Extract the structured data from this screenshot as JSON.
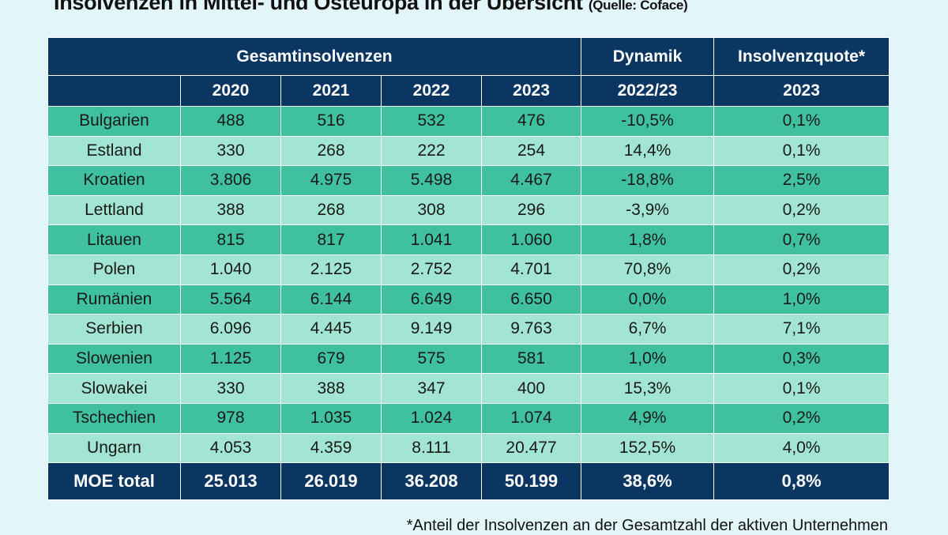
{
  "title": "Insolvenzen in Mittel- und Osteuropa in der Übersicht",
  "source": "(Quelle: Coface)",
  "header": {
    "group1": "Gesamtinsolvenzen",
    "group2": "Dynamik",
    "group3": "Insolvenzquote*",
    "sub": [
      "2020",
      "2021",
      "2022",
      "2023",
      "2022/23",
      "2023"
    ]
  },
  "rows": [
    [
      "Bulgarien",
      "488",
      "516",
      "532",
      "476",
      "-10,5%",
      "0,1%"
    ],
    [
      "Estland",
      "330",
      "268",
      "222",
      "254",
      "14,4%",
      "0,1%"
    ],
    [
      "Kroatien",
      "3.806",
      "4.975",
      "5.498",
      "4.467",
      "-18,8%",
      "2,5%"
    ],
    [
      "Lettland",
      "388",
      "268",
      "308",
      "296",
      "-3,9%",
      "0,2%"
    ],
    [
      "Litauen",
      "815",
      "817",
      "1.041",
      "1.060",
      "1,8%",
      "0,7%"
    ],
    [
      "Polen",
      "1.040",
      "2.125",
      "2.752",
      "4.701",
      "70,8%",
      "0,2%"
    ],
    [
      "Rumänien",
      "5.564",
      "6.144",
      "6.649",
      "6.650",
      "0,0%",
      "1,0%"
    ],
    [
      "Serbien",
      "6.096",
      "4.445",
      "9.149",
      "9.763",
      "6,7%",
      "7,1%"
    ],
    [
      "Slowenien",
      "1.125",
      "679",
      "575",
      "581",
      "1,0%",
      "0,3%"
    ],
    [
      "Slowakei",
      "330",
      "388",
      "347",
      "400",
      "15,3%",
      "0,1%"
    ],
    [
      "Tschechien",
      "978",
      "1.035",
      "1.024",
      "1.074",
      "4,9%",
      "0,2%"
    ],
    [
      "Ungarn",
      "4.053",
      "4.359",
      "8.111",
      "20.477",
      "152,5%",
      "4,0%"
    ]
  ],
  "total": [
    "MOE total",
    "25.013",
    "26.019",
    "36.208",
    "50.199",
    "38,6%",
    "0,8%"
  ],
  "footnote": "*Anteil der Insolvenzen an der Gesamtzahl der aktiven Unternehmen",
  "colors": {
    "header": "#0b3661",
    "row_dark": "#3fc1a0",
    "row_light": "#a2e5d3",
    "background": "#e2f5f9"
  }
}
